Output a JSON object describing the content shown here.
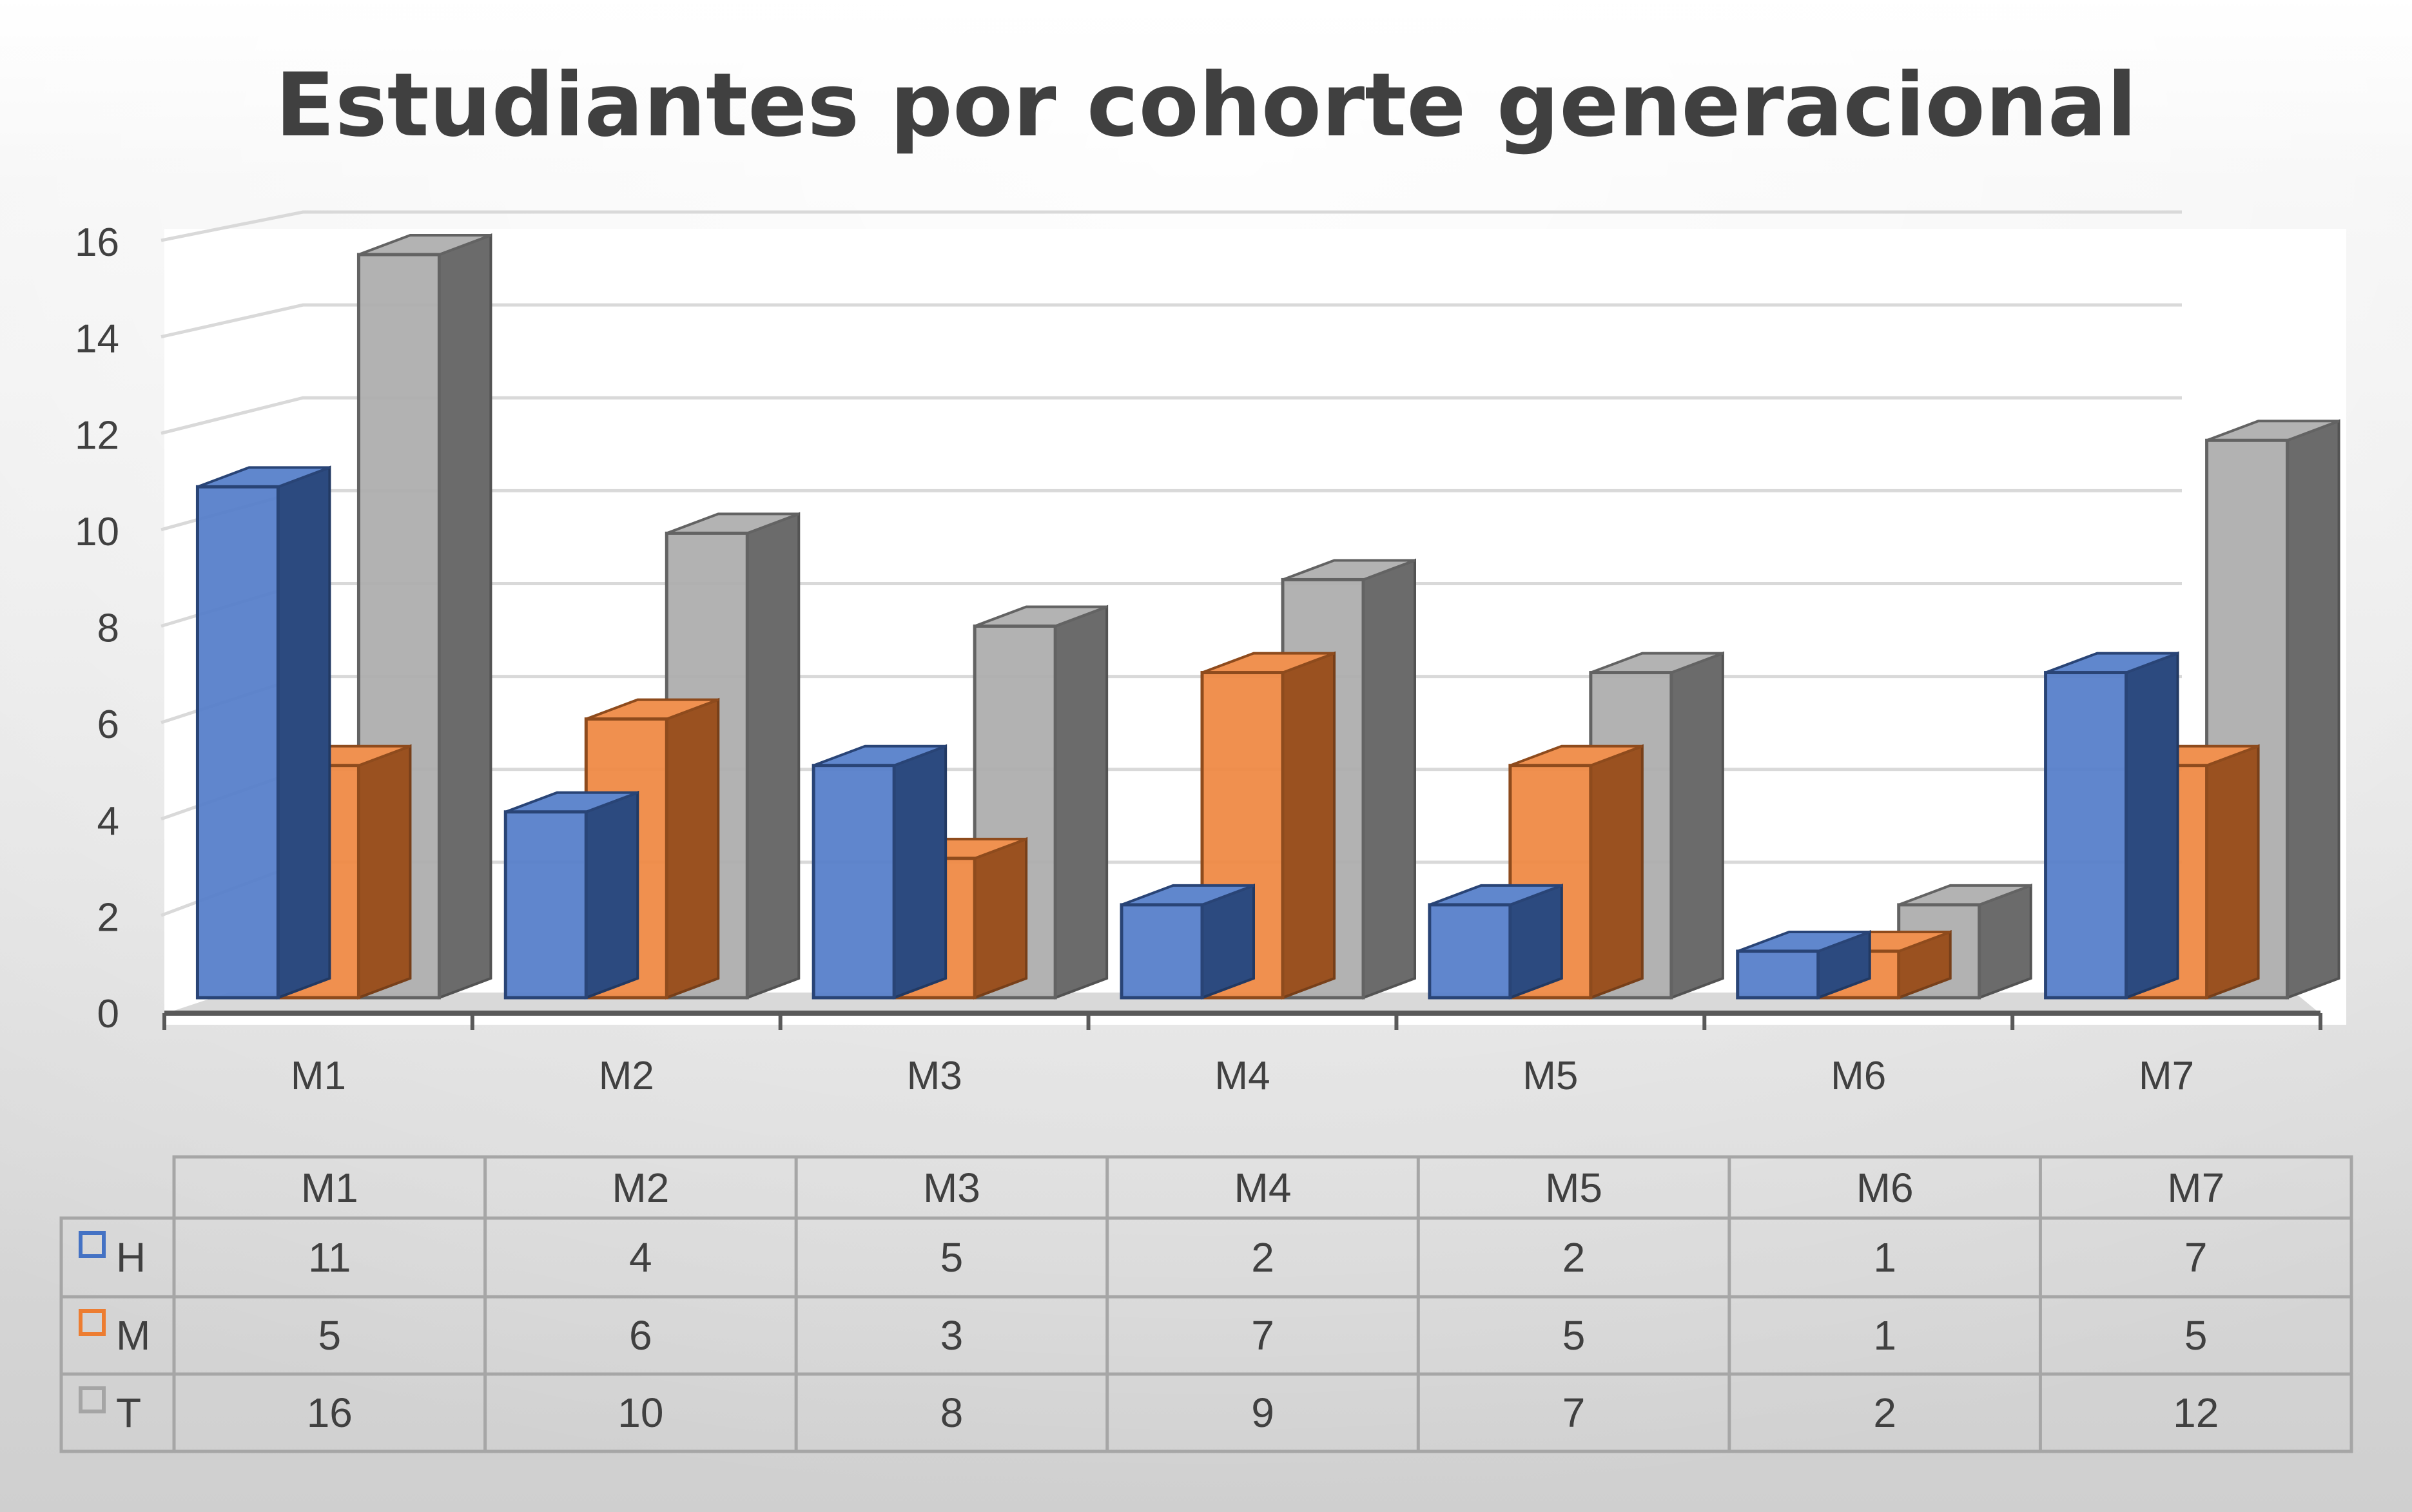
{
  "chart_data": {
    "type": "bar",
    "title": "Estudiantes por cohorte generacional",
    "categories": [
      "M1",
      "M2",
      "M3",
      "M4",
      "M5",
      "M6",
      "M7"
    ],
    "series": [
      {
        "name": "H",
        "values": [
          11,
          4,
          5,
          2,
          2,
          1,
          7
        ],
        "color": "#4472C4"
      },
      {
        "name": "M",
        "values": [
          5,
          6,
          3,
          7,
          5,
          1,
          5
        ],
        "color": "#ED7D31"
      },
      {
        "name": "T",
        "values": [
          16,
          10,
          8,
          9,
          7,
          2,
          12
        ],
        "color": "#A5A5A5"
      }
    ],
    "y_ticks": [
      "0",
      "2",
      "4",
      "6",
      "8",
      "10",
      "12",
      "14",
      "16"
    ],
    "ylim": [
      0,
      16
    ],
    "grid": true,
    "legend": "data-table",
    "style": "3d-clustered-column"
  }
}
